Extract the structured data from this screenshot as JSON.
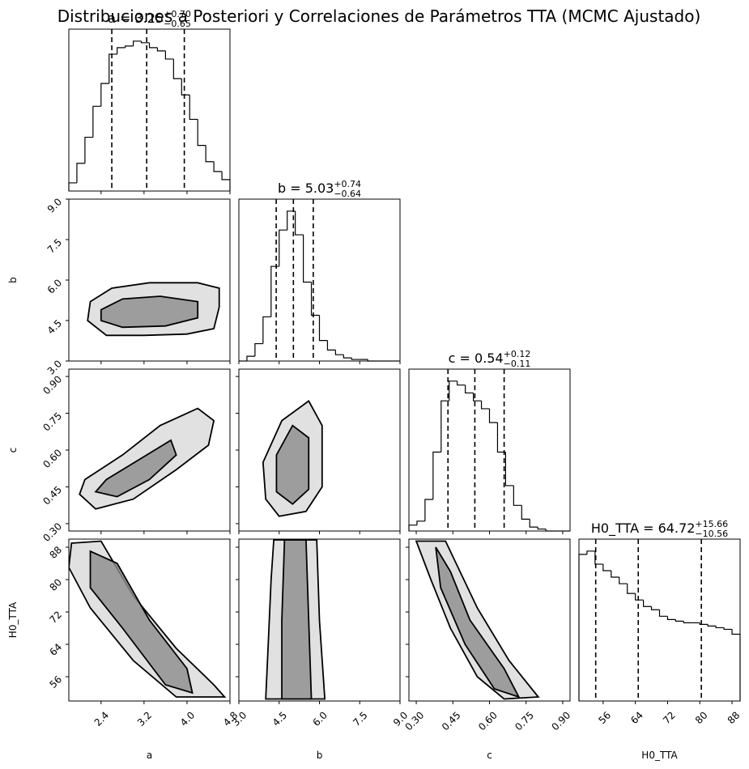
{
  "chart_data": {
    "type": "corner",
    "title": "Distribuciones a Posteriori y Correlaciones de Parámetros TTA (MCMC Ajustado)",
    "color": "#000000",
    "params": [
      {
        "name": "a",
        "title": "a = 3.25",
        "sup": "+0.70",
        "sub": "−0.65",
        "quantiles": [
          2.6,
          3.25,
          3.95
        ],
        "xlim": [
          1.8,
          4.8
        ],
        "xticks": [
          2.4,
          3.2,
          {
            "value": 4,
            "label": "4.0"
          },
          4.8
        ],
        "bins": [
          1.8,
          1.95,
          2.1,
          2.25,
          2.4,
          2.55,
          2.7,
          2.85,
          3.0,
          3.15,
          3.3,
          3.45,
          3.6,
          3.75,
          3.9,
          4.05,
          4.2,
          4.35,
          4.5,
          4.65,
          4.8
        ],
        "counts": [
          5,
          17,
          33,
          52,
          66,
          84,
          88,
          89,
          92,
          91,
          88,
          86,
          81,
          69,
          59,
          44,
          28,
          18,
          12,
          7
        ]
      },
      {
        "name": "b",
        "title": "b = 5.03",
        "sup": "+0.74",
        "sub": "−0.64",
        "quantiles": [
          4.39,
          5.03,
          5.77
        ],
        "xlim": [
          3.0,
          9.0
        ],
        "xticks": [
          {
            "value": 3,
            "label": "3.0"
          },
          4.5,
          {
            "value": 6,
            "label": "6.0"
          },
          7.5,
          {
            "value": 9,
            "label": "9.0"
          }
        ],
        "bins": [
          3.0,
          3.3,
          3.6,
          3.9,
          4.2,
          4.5,
          4.8,
          5.1,
          5.4,
          5.7,
          6.0,
          6.3,
          6.6,
          6.9,
          7.2,
          7.5,
          7.8,
          8.1,
          8.4,
          8.7,
          9.0
        ],
        "counts": [
          0,
          3,
          11,
          28,
          60,
          83,
          95,
          80,
          50,
          29,
          13,
          7,
          4,
          2,
          1,
          1,
          0,
          0,
          0,
          0
        ]
      },
      {
        "name": "c",
        "title": "c = 0.54",
        "sup": "+0.12",
        "sub": "−0.11",
        "quantiles": [
          0.43,
          0.54,
          0.66
        ],
        "xlim": [
          0.27,
          0.93
        ],
        "xticks": [
          {
            "value": 0.3,
            "label": "0.30"
          },
          0.45,
          {
            "value": 0.6,
            "label": "0.60"
          },
          0.75,
          {
            "value": 0.9,
            "label": "0.90"
          }
        ],
        "bins": [
          0.27,
          0.303,
          0.336,
          0.369,
          0.402,
          0.435,
          0.468,
          0.501,
          0.534,
          0.567,
          0.6,
          0.633,
          0.666,
          0.699,
          0.732,
          0.765,
          0.798,
          0.831,
          0.864,
          0.897,
          0.93
        ],
        "counts": [
          3,
          5,
          16,
          40,
          66,
          76,
          74,
          70,
          66,
          62,
          55,
          40,
          23,
          13,
          6,
          2,
          1,
          0,
          0,
          0
        ]
      },
      {
        "name": "H0_TTA",
        "title": "H0_TTA = 64.72",
        "sup": "+15.66",
        "sub": "−10.56",
        "quantiles": [
          54.16,
          64.72,
          80.38
        ],
        "xlim": [
          50,
          90
        ],
        "xticks": [
          56,
          64,
          72,
          80,
          88
        ],
        "bins": [
          50,
          52,
          54,
          56,
          58,
          60,
          62,
          64,
          66,
          68,
          70,
          72,
          74,
          76,
          78,
          80,
          82,
          84,
          86,
          88,
          90
        ],
        "counts": [
          90,
          92,
          84,
          80,
          76,
          72,
          66,
          62,
          58,
          56,
          52,
          50,
          49,
          48,
          48,
          47,
          46,
          45,
          44,
          41
        ]
      }
    ],
    "panels": [
      {
        "xparam": "a",
        "yparam": "b",
        "contours": [
          {
            "x": [
              2.15,
              2.5,
              3.2,
              4.0,
              4.5,
              4.6,
              4.6,
              4.2,
              3.3,
              2.6,
              2.2
            ],
            "y": [
              4.5,
              3.95,
              3.95,
              4.0,
              4.2,
              5.0,
              5.7,
              5.9,
              5.9,
              5.7,
              5.2
            ]
          },
          {
            "x": [
              2.4,
              2.8,
              3.6,
              4.2,
              4.2,
              3.5,
              2.8,
              2.4
            ],
            "y": [
              4.5,
              4.25,
              4.3,
              4.6,
              5.2,
              5.4,
              5.3,
              4.9
            ]
          }
        ]
      },
      {
        "xparam": "a",
        "yparam": "c",
        "contours": [
          {
            "x": [
              2.0,
              2.3,
              3.0,
              3.8,
              4.4,
              4.5,
              4.2,
              3.5,
              2.8,
              2.1
            ],
            "y": [
              0.42,
              0.36,
              0.4,
              0.52,
              0.62,
              0.72,
              0.77,
              0.7,
              0.58,
              0.48
            ]
          },
          {
            "x": [
              2.3,
              2.7,
              3.3,
              3.8,
              3.7,
              3.1,
              2.5
            ],
            "y": [
              0.43,
              0.41,
              0.48,
              0.58,
              0.64,
              0.56,
              0.48
            ]
          }
        ]
      },
      {
        "xparam": "b",
        "yparam": "c",
        "contours": [
          {
            "x": [
              4.0,
              4.5,
              5.5,
              6.1,
              6.1,
              5.6,
              4.6,
              3.9
            ],
            "y": [
              0.4,
              0.33,
              0.35,
              0.45,
              0.7,
              0.8,
              0.72,
              0.55
            ]
          },
          {
            "x": [
              4.4,
              5.0,
              5.6,
              5.6,
              5.0,
              4.4
            ],
            "y": [
              0.43,
              0.38,
              0.44,
              0.65,
              0.7,
              0.58
            ]
          }
        ]
      },
      {
        "xparam": "a",
        "yparam": "H0_TTA",
        "contours": [
          {
            "x": [
              1.85,
              2.4,
              3.0,
              3.8,
              4.5,
              4.7,
              3.8,
              3.0,
              2.2,
              1.8
            ],
            "y": [
              89,
              89.5,
              76,
              63,
              54,
              51,
              51,
              60,
              73,
              83
            ]
          },
          {
            "x": [
              2.2,
              2.7,
              3.3,
              4.0,
              4.1,
              3.6,
              2.8,
              2.2
            ],
            "y": [
              87,
              84,
              70,
              58,
              52,
              54,
              68,
              78
            ]
          }
        ]
      },
      {
        "xparam": "b",
        "yparam": "H0_TTA",
        "contours": [
          {
            "x": [
              4.3,
              5.9,
              6.0,
              6.2,
              4.0,
              4.1,
              4.2
            ],
            "y": [
              89.8,
              89.8,
              70,
              50.5,
              50.5,
              65,
              80
            ]
          },
          {
            "x": [
              4.7,
              5.5,
              5.6,
              5.7,
              4.6,
              4.6
            ],
            "y": [
              89.8,
              89.8,
              70,
              50.5,
              50.5,
              70
            ]
          }
        ]
      },
      {
        "xparam": "c",
        "yparam": "H0_TTA",
        "contours": [
          {
            "x": [
              0.3,
              0.42,
              0.55,
              0.68,
              0.8,
              0.66,
              0.55,
              0.44,
              0.36
            ],
            "y": [
              89.5,
              89.5,
              73,
              60,
              51,
              50.5,
              56,
              68,
              80
            ]
          },
          {
            "x": [
              0.38,
              0.44,
              0.52,
              0.66,
              0.72,
              0.62,
              0.5,
              0.4
            ],
            "y": [
              88,
              82,
              70,
              58,
              51,
              53,
              64,
              78
            ]
          }
        ]
      }
    ]
  }
}
